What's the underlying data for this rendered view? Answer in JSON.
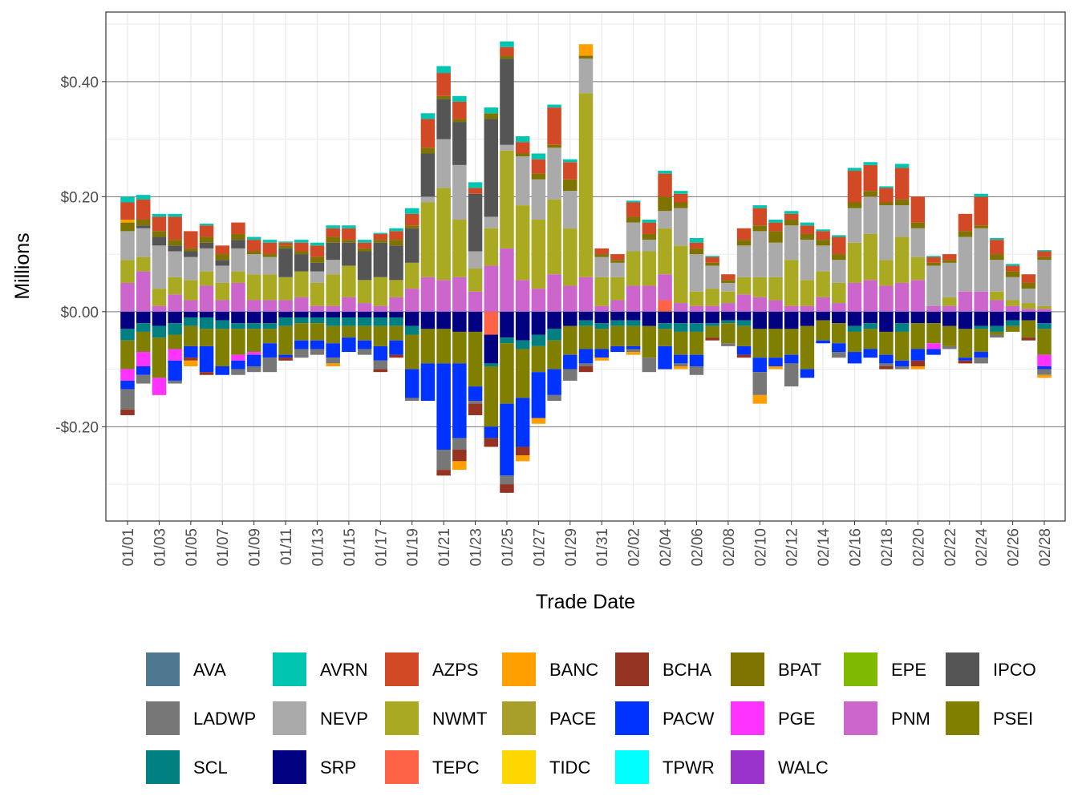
{
  "chart_data": {
    "type": "bar",
    "stacked": true,
    "xlabel": "Trade Date",
    "ylabel": "Millions",
    "ylim": [
      -0.364,
      0.521
    ],
    "y_ticks": [
      -0.2,
      0.0,
      0.2,
      0.4
    ],
    "y_tick_labels": [
      "-$0.20",
      "$0.00",
      "$0.20",
      "$0.40"
    ],
    "grid": true,
    "legend_position": "bottom",
    "categories": [
      "01/01",
      "01/02",
      "01/03",
      "01/04",
      "01/05",
      "01/06",
      "01/07",
      "01/08",
      "01/09",
      "01/10",
      "01/11",
      "01/12",
      "01/13",
      "01/14",
      "01/15",
      "01/16",
      "01/17",
      "01/18",
      "01/19",
      "01/20",
      "01/21",
      "01/22",
      "01/23",
      "01/24",
      "01/25",
      "01/26",
      "01/27",
      "01/28",
      "01/29",
      "01/30",
      "01/31",
      "02/01",
      "02/02",
      "02/03",
      "02/04",
      "02/05",
      "02/06",
      "02/07",
      "02/08",
      "02/09",
      "02/10",
      "02/11",
      "02/12",
      "02/13",
      "02/14",
      "02/15",
      "02/16",
      "02/17",
      "02/18",
      "02/19",
      "02/20",
      "02/21",
      "02/22",
      "02/23",
      "02/24",
      "02/25",
      "02/26",
      "02/27",
      "02/28"
    ],
    "series": [
      {
        "name": "AVA",
        "color": "#4E7790"
      },
      {
        "name": "AVRN",
        "color": "#00C5B0",
        "values": [
          0.01,
          0.008,
          0.005,
          0.005,
          0,
          0.003,
          0,
          0,
          0.005,
          0.005,
          0.002,
          0.005,
          0.005,
          0.005,
          0.005,
          0.005,
          0.002,
          0.005,
          0.01,
          0.01,
          0.012,
          0.01,
          0.01,
          0.01,
          0.01,
          0.01,
          0.01,
          0.005,
          0.005,
          0,
          0,
          0,
          0.003,
          0.005,
          0.005,
          0.005,
          0.008,
          0.002,
          0,
          0,
          0.005,
          0.005,
          0.005,
          0.005,
          0.003,
          0.003,
          0.005,
          0.005,
          0.003,
          0.007,
          0,
          0.002,
          0,
          0,
          0.005,
          0.003,
          0.003,
          0,
          0.002
        ]
      },
      {
        "name": "AZPS",
        "color": "#D24A25",
        "values": [
          0.03,
          0.035,
          0.025,
          0.04,
          0.03,
          0.02,
          0.015,
          0.02,
          0.02,
          0.02,
          0.005,
          0.015,
          0.02,
          0.015,
          0.02,
          0.01,
          0.01,
          0.015,
          0.02,
          0.05,
          0.04,
          0.03,
          0.01,
          0,
          0.015,
          0.02,
          0.025,
          0.065,
          0.03,
          0,
          0.01,
          0.01,
          0.025,
          0.02,
          0.04,
          0.015,
          0.01,
          0.01,
          0.01,
          0.02,
          0.03,
          0.015,
          0.01,
          0.015,
          0.015,
          0.03,
          0.055,
          0.045,
          0.025,
          0.055,
          0.045,
          0.01,
          0.01,
          0.03,
          0.05,
          0.025,
          0.01,
          0.015,
          0.01
        ]
      },
      {
        "name": "BANC",
        "color": "#FFA000",
        "values": [
          0.005,
          0,
          0,
          0,
          -0.01,
          0,
          0,
          0,
          0,
          0,
          0,
          0,
          0,
          -0.005,
          0,
          0,
          0,
          0,
          0,
          0,
          0,
          -0.015,
          0,
          0,
          0,
          -0.01,
          -0.01,
          0,
          0,
          0.02,
          -0.005,
          0,
          -0.005,
          0,
          0,
          -0.005,
          0,
          0,
          0,
          0,
          -0.015,
          -0.005,
          0,
          0,
          0,
          0,
          0,
          0,
          0,
          0,
          -0.005,
          0,
          0,
          0,
          0,
          0,
          0,
          0,
          -0.005
        ]
      },
      {
        "name": "BCHA",
        "color": "#943322",
        "values": [
          -0.01,
          0,
          0,
          0,
          -0.005,
          -0.005,
          0,
          0,
          0,
          0,
          -0.005,
          0,
          0,
          0,
          0,
          0,
          -0.005,
          -0.005,
          0,
          0,
          -0.01,
          -0.02,
          -0.02,
          -0.015,
          -0.015,
          -0.015,
          0,
          0,
          0,
          -0.01,
          0,
          0,
          0,
          0,
          0,
          0,
          0,
          -0.005,
          0,
          -0.005,
          0,
          0,
          0,
          0,
          0,
          0,
          0,
          0,
          -0.005,
          0,
          -0.01,
          0,
          0,
          -0.005,
          0,
          0,
          0,
          -0.005,
          0
        ]
      },
      {
        "name": "BPAT",
        "color": "#7F7300",
        "values": [
          0.015,
          0.01,
          0.01,
          0.01,
          0.005,
          0.01,
          0.01,
          0.01,
          0.005,
          0.005,
          0.005,
          0.005,
          0.01,
          0.01,
          0.005,
          0.005,
          0.005,
          0.01,
          0.005,
          0.01,
          0.005,
          0.005,
          0,
          0.01,
          0.005,
          0.005,
          0.01,
          0.005,
          0.02,
          0.005,
          0.005,
          0.005,
          0.01,
          0.01,
          0.025,
          0.01,
          0.01,
          0.005,
          0.005,
          0.01,
          0.01,
          0.02,
          0.01,
          0.01,
          0.01,
          0.01,
          0.01,
          0.01,
          0.005,
          0.01,
          0.01,
          0.005,
          0.005,
          0.01,
          0.005,
          0.01,
          0.01,
          0.01,
          0.005
        ]
      },
      {
        "name": "EPE",
        "color": "#7FBA00"
      },
      {
        "name": "IPCO",
        "color": "#555555",
        "values": [
          0,
          0.005,
          0.015,
          0.01,
          0.01,
          0.01,
          0.01,
          0.015,
          0,
          0,
          0.05,
          0.03,
          0.015,
          0.03,
          0.04,
          0.05,
          0.06,
          0.06,
          0.06,
          0.075,
          0.07,
          0.075,
          0.1,
          0.17,
          0.15,
          0,
          0,
          0,
          0,
          0,
          0,
          0,
          0,
          0,
          0,
          0,
          0,
          0,
          0,
          0,
          0,
          0,
          0,
          0,
          0,
          0,
          0,
          0,
          0,
          0,
          0,
          0,
          0,
          0,
          0,
          0,
          0,
          0,
          0
        ]
      },
      {
        "name": "LADWP",
        "color": "#777777",
        "values": [
          -0.035,
          -0.015,
          0,
          -0.005,
          0,
          0,
          0,
          -0.01,
          -0.01,
          -0.025,
          0,
          -0.015,
          -0.01,
          -0.01,
          0,
          -0.01,
          -0.015,
          0,
          -0.005,
          0,
          -0.035,
          -0.02,
          -0.005,
          0,
          -0.015,
          0,
          0,
          -0.01,
          -0.02,
          -0.005,
          0,
          0,
          -0.005,
          -0.025,
          0,
          -0.005,
          -0.015,
          0,
          -0.005,
          0,
          -0.04,
          0,
          -0.04,
          0,
          0,
          -0.01,
          0,
          0,
          -0.005,
          -0.005,
          0,
          0,
          -0.005,
          0,
          -0.01,
          -0.005,
          0,
          0,
          -0.01
        ]
      },
      {
        "name": "NEVP",
        "color": "#AAAAAA",
        "values": [
          0.05,
          0.05,
          0.075,
          0.045,
          0.04,
          0.04,
          0.03,
          0.04,
          0.035,
          0.03,
          0,
          0,
          0.02,
          0.025,
          0,
          0,
          0,
          0,
          0,
          0.01,
          0.085,
          0.095,
          0.03,
          0.02,
          0.01,
          0.085,
          0.07,
          0.09,
          0.065,
          0.06,
          0.035,
          0.025,
          0.05,
          0.02,
          0.03,
          0.065,
          0.065,
          0.04,
          0.015,
          0.055,
          0.08,
          0.06,
          0.06,
          0.07,
          0.045,
          0.04,
          0.06,
          0.065,
          0.095,
          0.055,
          0.05,
          0.07,
          0.06,
          0.095,
          0.11,
          0.055,
          0.04,
          0.025,
          0.08
        ]
      },
      {
        "name": "NWMT",
        "color": "#AAAA22",
        "values": [
          0.04,
          0.025,
          0.03,
          0.03,
          0.035,
          0.025,
          0.03,
          0.02,
          0.045,
          0.045,
          0.04,
          0.045,
          0.04,
          0.055,
          0.055,
          0.04,
          0.05,
          0.03,
          0.045,
          0.13,
          0.16,
          0.1,
          0.04,
          0.065,
          0.17,
          0.13,
          0.12,
          0.13,
          0.1,
          0.32,
          0.05,
          0.04,
          0.06,
          0.06,
          0.08,
          0.1,
          0.025,
          0.03,
          0.02,
          0.03,
          0.035,
          0.04,
          0.08,
          0.045,
          0.045,
          0.035,
          0.07,
          0.08,
          0.045,
          0.08,
          0.04,
          0,
          0.015,
          0,
          0,
          0.015,
          0.01,
          0.01,
          0.005
        ]
      },
      {
        "name": "PACE",
        "color": "#A89E2A"
      },
      {
        "name": "PACW",
        "color": "#0033FF",
        "values": [
          -0.015,
          -0.015,
          0,
          -0.035,
          -0.02,
          -0.045,
          -0.015,
          -0.015,
          -0.02,
          -0.025,
          -0.005,
          -0.015,
          -0.015,
          -0.025,
          -0.025,
          -0.015,
          -0.025,
          -0.025,
          -0.05,
          -0.065,
          -0.15,
          -0.13,
          -0.025,
          -0.02,
          -0.125,
          -0.085,
          -0.08,
          -0.045,
          -0.025,
          -0.025,
          -0.015,
          -0.01,
          -0.005,
          0,
          -0.04,
          -0.015,
          -0.02,
          0,
          0,
          -0.015,
          -0.025,
          -0.015,
          -0.015,
          -0.015,
          -0.005,
          -0.015,
          -0.02,
          -0.015,
          -0.015,
          -0.01,
          -0.02,
          -0.01,
          0,
          -0.005,
          -0.01,
          0,
          0,
          0,
          -0.005
        ]
      },
      {
        "name": "PGE",
        "color": "#FF33FF",
        "values": [
          -0.02,
          -0.025,
          -0.03,
          -0.02,
          0,
          0,
          0,
          -0.01,
          -0.005,
          0,
          0,
          0,
          0,
          0,
          0,
          0,
          0,
          0,
          0,
          0,
          0,
          0,
          0,
          0,
          0,
          0,
          0,
          0,
          0,
          0,
          0,
          0,
          0,
          0,
          0,
          0,
          0,
          0,
          0,
          0,
          0,
          0,
          0,
          0,
          0,
          0,
          0,
          0,
          0,
          0,
          0,
          -0.01,
          0,
          0,
          0,
          0,
          0,
          0,
          -0.02
        ]
      },
      {
        "name": "PNM",
        "color": "#CC66CC",
        "values": [
          0.05,
          0.07,
          0.01,
          0.03,
          0.02,
          0.045,
          0.02,
          0.05,
          0.02,
          0.02,
          0.02,
          0.025,
          0.01,
          0.01,
          0.025,
          0.015,
          0.01,
          0.025,
          0.04,
          0.06,
          0.055,
          0.06,
          0.035,
          0.08,
          0.11,
          0.055,
          0.04,
          0.065,
          0.045,
          0.06,
          0.01,
          0.02,
          0.045,
          0.045,
          0.045,
          0.015,
          0.01,
          0.01,
          0.015,
          0.03,
          0.025,
          0.02,
          0.01,
          0.01,
          0.025,
          0.015,
          0.05,
          0.055,
          0.045,
          0.05,
          0.055,
          0.01,
          0.01,
          0.035,
          0.035,
          0.02,
          0.01,
          0.005,
          0.005
        ]
      },
      {
        "name": "PSEI",
        "color": "#807F00",
        "values": [
          -0.05,
          -0.035,
          -0.07,
          -0.025,
          -0.035,
          -0.03,
          -0.065,
          -0.045,
          -0.04,
          -0.025,
          -0.05,
          -0.03,
          -0.03,
          -0.03,
          -0.02,
          -0.025,
          -0.035,
          -0.025,
          -0.06,
          -0.06,
          -0.06,
          -0.055,
          -0.095,
          -0.105,
          -0.105,
          -0.085,
          -0.045,
          -0.05,
          -0.05,
          -0.04,
          -0.035,
          -0.035,
          -0.035,
          -0.055,
          -0.03,
          -0.04,
          -0.04,
          -0.02,
          -0.035,
          -0.035,
          -0.05,
          -0.05,
          -0.045,
          -0.075,
          -0.035,
          -0.035,
          -0.035,
          -0.035,
          -0.04,
          -0.05,
          -0.045,
          -0.035,
          -0.035,
          -0.05,
          -0.04,
          -0.005,
          -0.01,
          -0.03,
          -0.045
        ]
      },
      {
        "name": "SCL",
        "color": "#008080",
        "values": [
          -0.02,
          -0.015,
          -0.02,
          -0.02,
          -0.015,
          -0.02,
          -0.015,
          -0.01,
          -0.01,
          -0.01,
          -0.015,
          -0.01,
          -0.01,
          -0.015,
          -0.015,
          -0.015,
          -0.015,
          -0.015,
          -0.015,
          0,
          0,
          0,
          0,
          -0.005,
          -0.01,
          -0.015,
          -0.02,
          -0.02,
          0,
          -0.01,
          -0.01,
          -0.01,
          -0.01,
          0,
          -0.01,
          -0.015,
          -0.015,
          -0.005,
          -0.005,
          -0.01,
          0,
          0,
          0,
          0,
          0,
          0,
          -0.01,
          -0.01,
          0,
          -0.015,
          0,
          0,
          0,
          0,
          -0.005,
          -0.01,
          -0.01,
          0,
          -0.01
        ]
      },
      {
        "name": "SRP",
        "color": "#000080",
        "values": [
          -0.03,
          -0.02,
          -0.025,
          -0.02,
          -0.01,
          -0.01,
          -0.015,
          -0.02,
          -0.02,
          -0.02,
          -0.01,
          -0.01,
          -0.01,
          -0.01,
          -0.01,
          -0.01,
          -0.01,
          -0.01,
          -0.025,
          -0.03,
          -0.03,
          -0.035,
          -0.035,
          -0.05,
          -0.045,
          -0.05,
          -0.04,
          -0.03,
          -0.025,
          -0.015,
          -0.02,
          -0.015,
          -0.015,
          -0.025,
          -0.02,
          -0.02,
          -0.02,
          -0.02,
          -0.015,
          -0.015,
          -0.03,
          -0.03,
          -0.03,
          -0.025,
          -0.015,
          -0.02,
          -0.025,
          -0.02,
          -0.035,
          -0.02,
          -0.02,
          -0.02,
          -0.025,
          -0.03,
          -0.025,
          -0.025,
          -0.015,
          -0.015,
          -0.02
        ]
      },
      {
        "name": "TEPC",
        "color": "#FF6347",
        "values": [
          0,
          0,
          0,
          0,
          0,
          0,
          0,
          0,
          0,
          0,
          0,
          0,
          0,
          0,
          0,
          0,
          0,
          0,
          0,
          0,
          0,
          0,
          0,
          -0.04,
          0,
          0,
          0,
          0,
          0,
          0,
          0,
          0,
          0,
          0,
          0.02,
          0,
          0,
          0,
          0,
          0,
          0,
          0,
          0,
          0,
          0,
          0,
          0,
          0,
          0,
          0,
          0,
          0,
          0,
          0,
          0,
          0,
          0,
          0,
          0
        ]
      },
      {
        "name": "TIDC",
        "color": "#FFD700"
      },
      {
        "name": "TPWR",
        "color": "#00FFFF"
      },
      {
        "name": "WALC",
        "color": "#9933CC"
      }
    ]
  }
}
